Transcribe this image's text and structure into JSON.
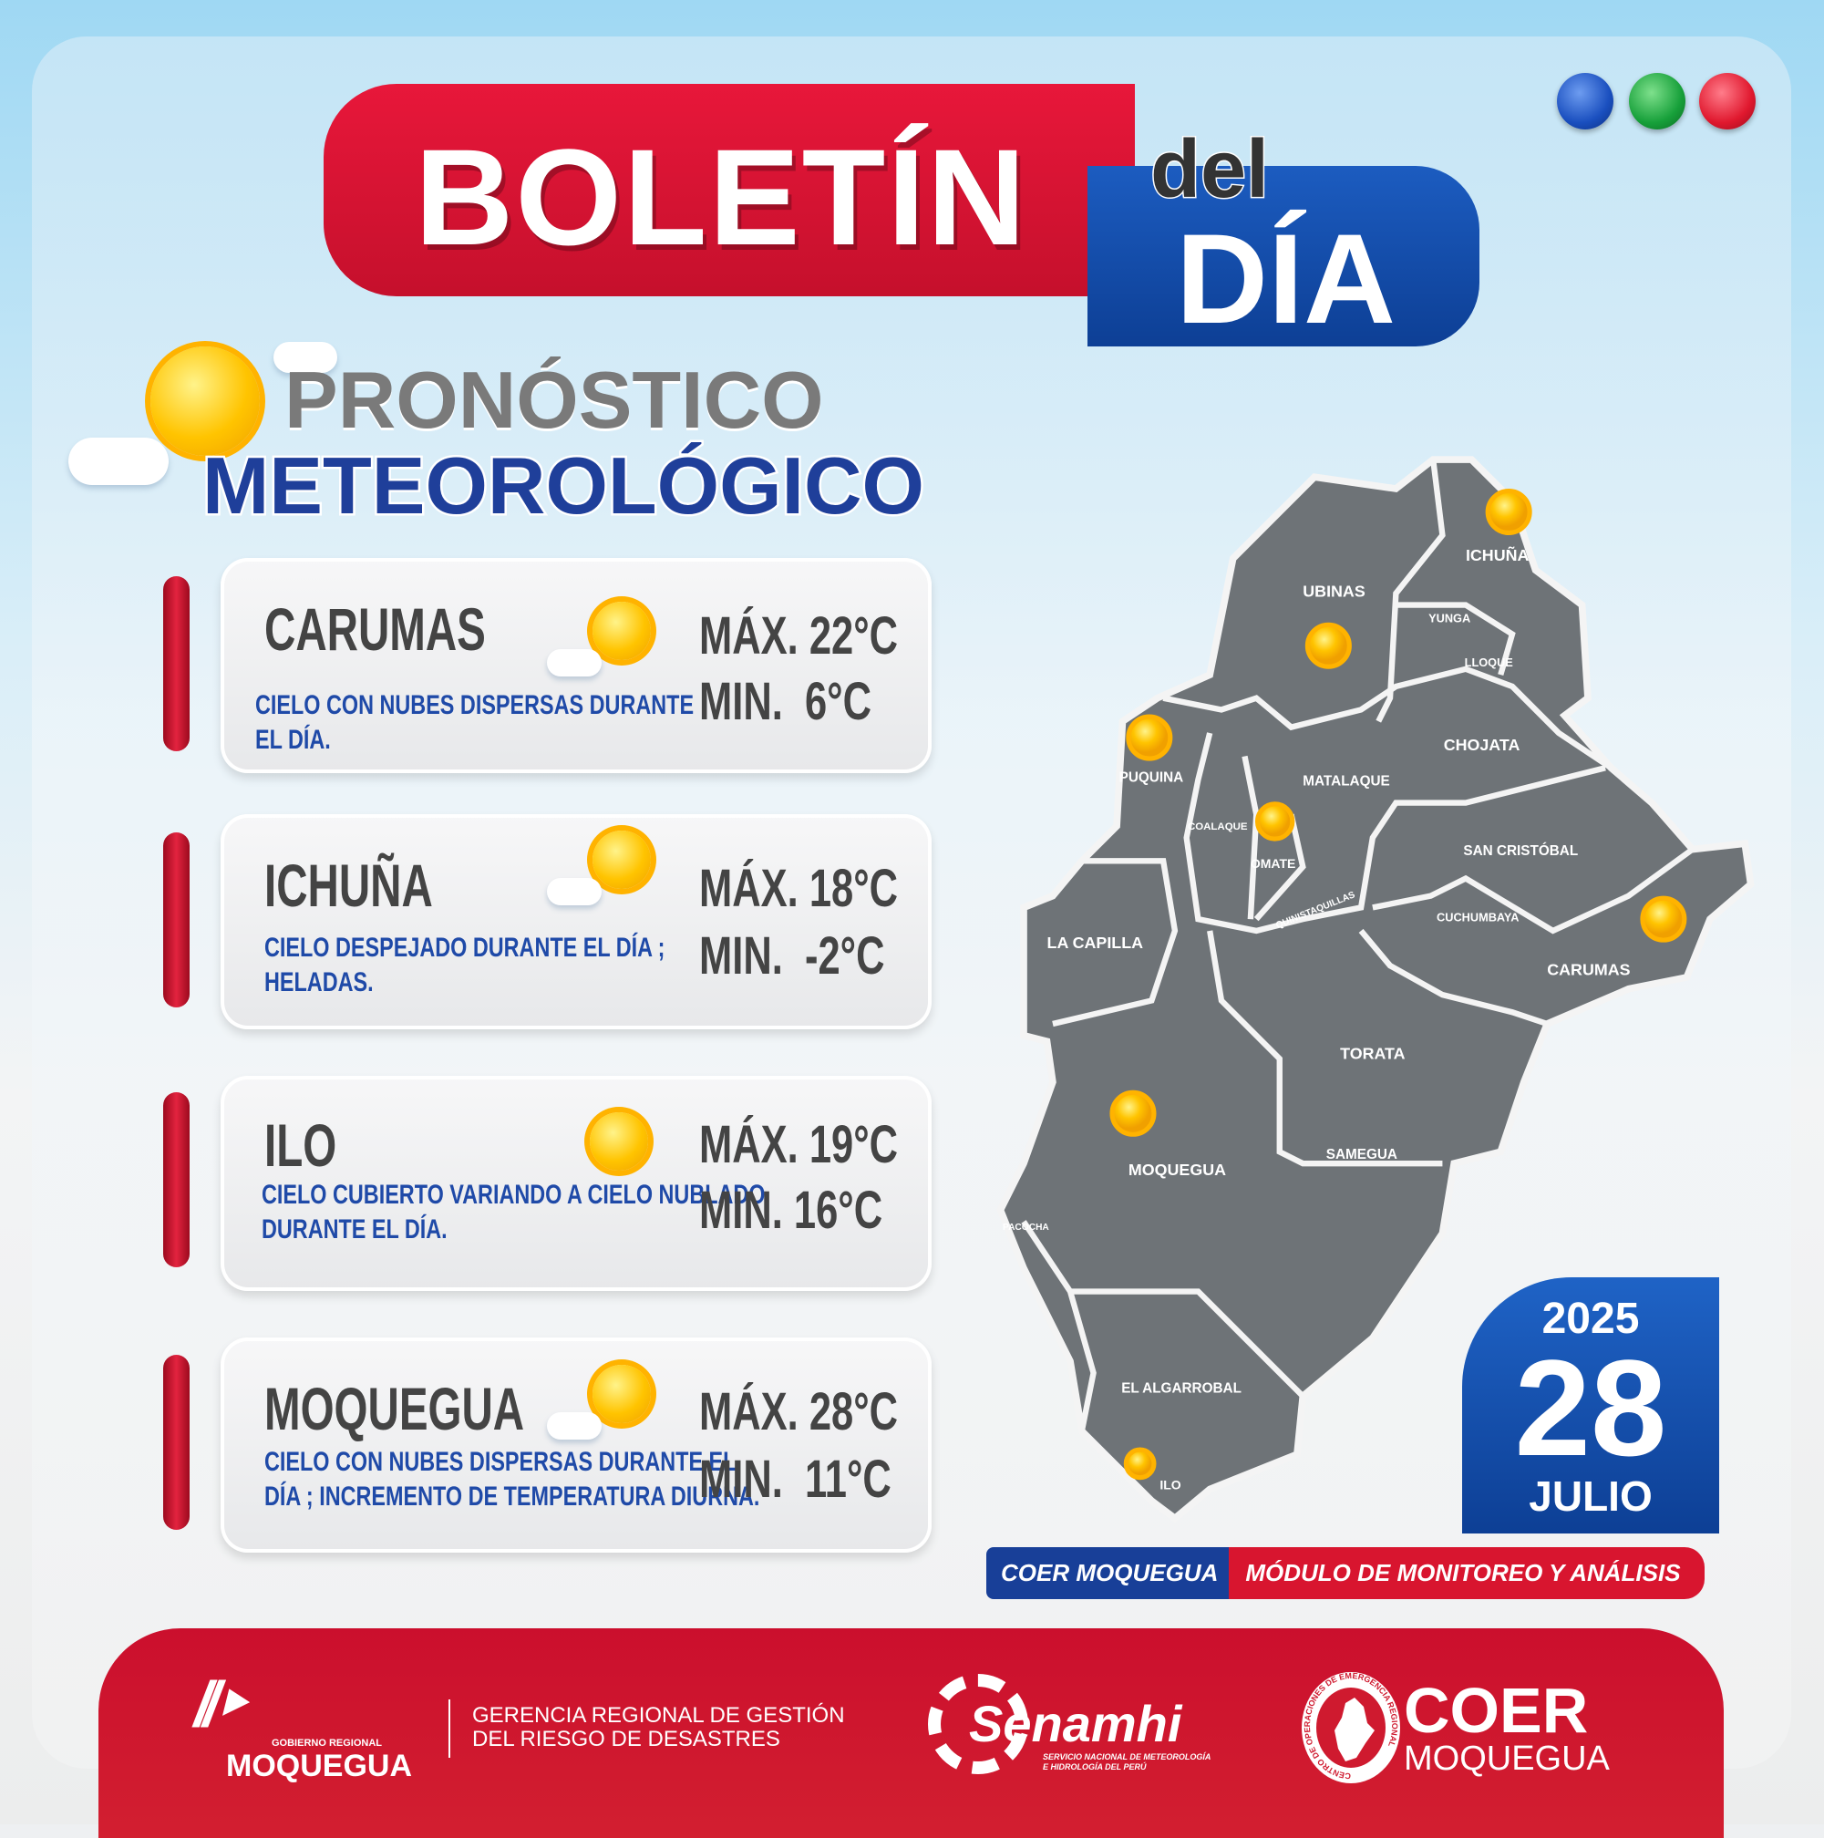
{
  "header": {
    "title_1": "BOLETÍN",
    "title_2": "del",
    "title_3": "DÍA"
  },
  "dots": [
    "#1a4fbf",
    "#17a03a",
    "#e0182e"
  ],
  "heading": {
    "line1": "PRONÓSTICO",
    "line2": "METEOROLÓGICO"
  },
  "forecasts": [
    {
      "city": "CARUMAS",
      "description": "CIELO CON NUBES DISPERSAS DURANTE\n EL DÍA.",
      "max": "MÁX. 22°C",
      "min": "MIN.  6°C",
      "icon": "sun-cloud-icon"
    },
    {
      "city": "ICHUÑA",
      "description": "CIELO DESPEJADO DURANTE EL DÍA ;\nHELADAS.",
      "max": "MÁX. 18°C",
      "min": "MIN.  -2°C",
      "icon": "sun-cloud-icon"
    },
    {
      "city": "ILO",
      "description": "CIELO CUBIERTO VARIANDO A CIELO NUBLADO\n DURANTE EL DÍA.",
      "max": "MÁX. 19°C",
      "min": "MIN. 16°C",
      "icon": "sun-icon"
    },
    {
      "city": "MOQUEGUA",
      "description": "CIELO CON NUBES DISPERSAS DURANTE EL\nDÍA ; INCREMENTO DE TEMPERATURA DIURNA.",
      "max": "MÁX. 28°C",
      "min": "MIN.  11°C",
      "icon": "sun-cloud-icon"
    }
  ],
  "map": {
    "districts": [
      "ICHUÑA",
      "UBINAS",
      "YUNGA",
      "LLOQUE",
      "CHOJATA",
      "PUQUINA",
      "MATALAQUE",
      "COALAQUE",
      "OMATE",
      "SAN CRISTÓBAL",
      "QUINISTAQUILLAS",
      "CUCHUMBAYA",
      "LA CAPILLA",
      "CARUMAS",
      "TORATA",
      "SAMEGUA",
      "MOQUEGUA",
      "PACOCHA",
      "EL ALGARROBAL",
      "ILO"
    ]
  },
  "date": {
    "year": "2025",
    "day": "28",
    "month": "JULIO"
  },
  "banner": {
    "left": "COER MOQUEGUA",
    "right": "MÓDULO DE MONITOREO Y ANÁLISIS"
  },
  "footer": {
    "gob_small": "GOBIERNO REGIONAL",
    "gob_big": "MOQUEGUA",
    "gerencia_1": "GERENCIA REGIONAL DE GESTIÓN",
    "gerencia_2": "DEL RIESGO DE DESASTRES",
    "senamhi": "Senamhi",
    "senamhi_sub_1": "SERVICIO NACIONAL DE METEOROLOGÍA",
    "senamhi_sub_2": "E HIDROLOGÍA DEL PERÚ",
    "coer_ring": "CENTRO DE OPERACIONES DE EMERGENCIA REGIONAL",
    "coer_1": "COER",
    "coer_2": "MOQUEGUA"
  }
}
